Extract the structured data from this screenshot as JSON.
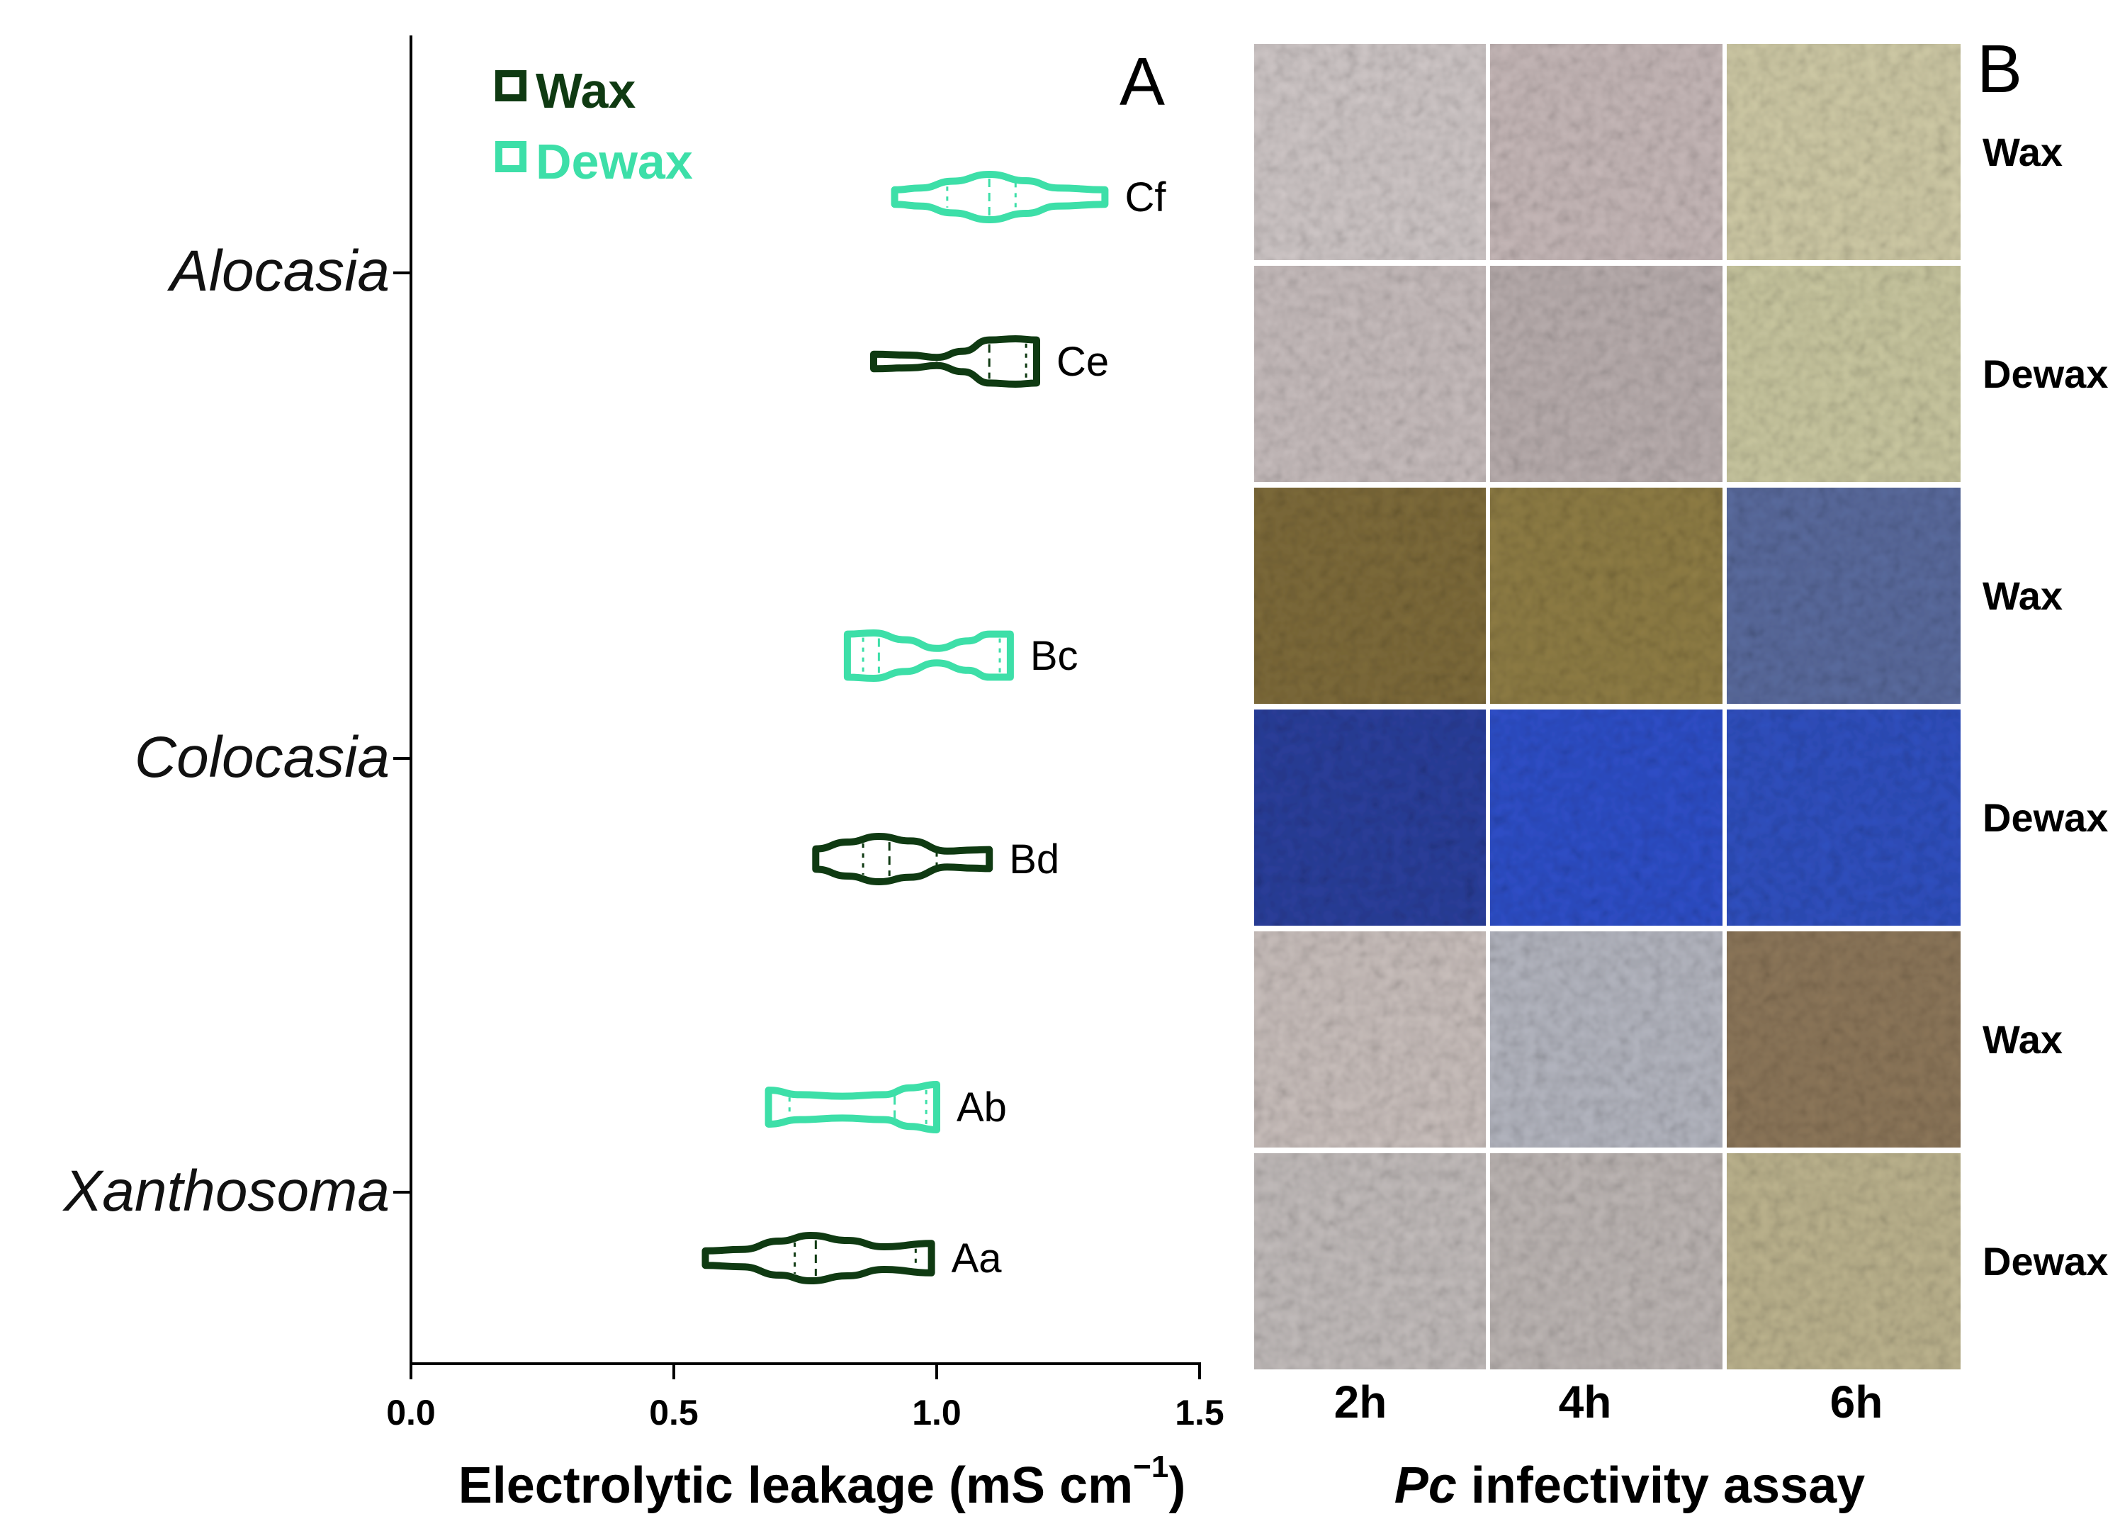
{
  "chart_data": {
    "type": "violin",
    "orientation": "horizontal",
    "panel_label": "A",
    "xlabel_main": "Electrolytic leakage (mS cm",
    "xlabel_sup": "−1",
    "xlabel_close": ")",
    "xlim": [
      0,
      1.5
    ],
    "xticks": [
      "0.0",
      "0.5",
      "1.0",
      "1.5"
    ],
    "xtick_values": [
      0,
      0.5,
      1.0,
      1.5
    ],
    "categories": [
      "Alocasia",
      "Colocasia",
      "Xanthosoma"
    ],
    "colors": {
      "Wax": "#0f3a12",
      "Dewax": "#3ddfa8"
    },
    "legend": {
      "position": "top-left",
      "items": [
        "Wax",
        "Dewax"
      ]
    },
    "series": [
      {
        "name": "Wax",
        "groups": [
          {
            "species": "Alocasia",
            "label": "Ce",
            "min": 0.88,
            "q1": 1.0,
            "median": 1.1,
            "q3": 1.17,
            "max": 1.19,
            "profile": [
              [
                0.88,
                0.32
              ],
              [
                0.95,
                0.28
              ],
              [
                1.0,
                0.18
              ],
              [
                1.05,
                0.45
              ],
              [
                1.1,
                0.95
              ],
              [
                1.15,
                1.0
              ],
              [
                1.19,
                0.95
              ]
            ]
          },
          {
            "species": "Colocasia",
            "label": "Bd",
            "min": 0.77,
            "q1": 0.86,
            "median": 0.91,
            "q3": 1.0,
            "max": 1.1,
            "profile": [
              [
                0.77,
                0.45
              ],
              [
                0.83,
                0.75
              ],
              [
                0.89,
                1.0
              ],
              [
                0.95,
                0.8
              ],
              [
                1.02,
                0.35
              ],
              [
                1.07,
                0.4
              ],
              [
                1.1,
                0.42
              ]
            ]
          },
          {
            "species": "Xanthosoma",
            "label": "Aa",
            "min": 0.56,
            "q1": 0.73,
            "median": 0.77,
            "q3": 0.96,
            "max": 0.99,
            "profile": [
              [
                0.56,
                0.32
              ],
              [
                0.63,
                0.38
              ],
              [
                0.7,
                0.75
              ],
              [
                0.76,
                1.0
              ],
              [
                0.83,
                0.78
              ],
              [
                0.9,
                0.5
              ],
              [
                0.99,
                0.65
              ]
            ]
          }
        ]
      },
      {
        "name": "Dewax",
        "groups": [
          {
            "species": "Alocasia",
            "label": "Cf",
            "min": 0.92,
            "q1": 1.02,
            "median": 1.1,
            "q3": 1.15,
            "max": 1.32,
            "profile": [
              [
                0.92,
                0.32
              ],
              [
                0.97,
                0.4
              ],
              [
                1.03,
                0.7
              ],
              [
                1.1,
                1.0
              ],
              [
                1.17,
                0.72
              ],
              [
                1.23,
                0.4
              ],
              [
                1.32,
                0.32
              ]
            ]
          },
          {
            "species": "Colocasia",
            "label": "Bc",
            "min": 0.83,
            "q1": 0.86,
            "median": 0.89,
            "q3": 1.12,
            "max": 1.14,
            "profile": [
              [
                0.83,
                0.95
              ],
              [
                0.88,
                1.0
              ],
              [
                0.94,
                0.7
              ],
              [
                1.0,
                0.32
              ],
              [
                1.06,
                0.65
              ],
              [
                1.1,
                0.95
              ],
              [
                1.14,
                0.95
              ]
            ]
          },
          {
            "species": "Xanthosoma",
            "label": "Ab",
            "min": 0.68,
            "q1": 0.72,
            "median": 0.92,
            "q3": 0.98,
            "max": 1.0,
            "profile": [
              [
                0.68,
                0.75
              ],
              [
                0.74,
                0.55
              ],
              [
                0.82,
                0.48
              ],
              [
                0.9,
                0.55
              ],
              [
                0.95,
                0.85
              ],
              [
                1.0,
                1.0
              ]
            ]
          }
        ]
      }
    ]
  },
  "panel_b": {
    "panel_label": "B",
    "title_italic": "Pc",
    "title_rest": " infectivity assay",
    "columns": [
      "2h",
      "4h",
      "6h"
    ],
    "rows": [
      "Wax",
      "Dewax",
      "Wax",
      "Dewax",
      "Wax",
      "Dewax"
    ],
    "tile_colors": [
      [
        "#cfc7c7",
        "#c6b8b8",
        "#cfcaa6"
      ],
      [
        "#c7bdbd",
        "#b9aeae",
        "#c9c7a0"
      ],
      [
        "#7e6b3a",
        "#8f7d45",
        "#5a6b9e"
      ],
      [
        "#2b3f9c",
        "#2f4fc9",
        "#3050c0"
      ],
      [
        "#c9bfbc",
        "#b4b6c0",
        "#8d775a"
      ],
      [
        "#c2bcbb",
        "#bdb6b4",
        "#bcb38e"
      ]
    ]
  }
}
